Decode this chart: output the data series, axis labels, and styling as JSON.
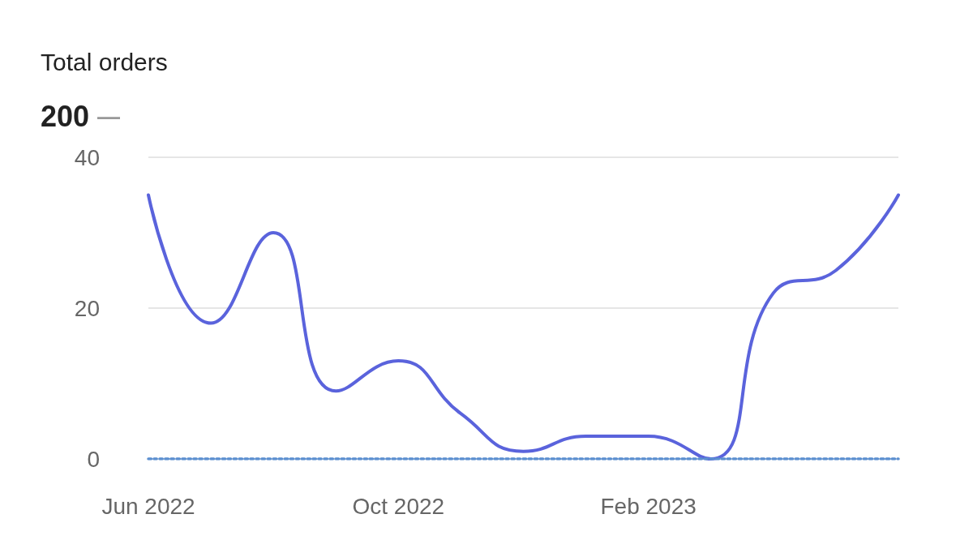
{
  "chart_data": {
    "type": "line",
    "title": "Total orders",
    "subtitle": "200",
    "annotations": [
      "—"
    ],
    "categories": [
      "Jun 2022",
      null,
      null,
      null,
      "Oct 2022",
      null,
      null,
      null,
      "Feb 2023",
      null,
      null,
      null,
      null
    ],
    "series": [
      {
        "color": "#5a63dc",
        "values": [
          35,
          18,
          30,
          9,
          13,
          6,
          1,
          3,
          3,
          0,
          22,
          25,
          35
        ]
      },
      {
        "color": "#5b8fd0",
        "line_style": "dotted",
        "values": [
          0,
          0,
          0,
          0,
          0,
          0,
          0,
          0,
          0,
          0,
          0,
          0,
          0
        ]
      }
    ],
    "ylim": [
      0,
      40
    ],
    "yticks": [
      0,
      20,
      40
    ],
    "grid": "y",
    "marker": "none"
  }
}
